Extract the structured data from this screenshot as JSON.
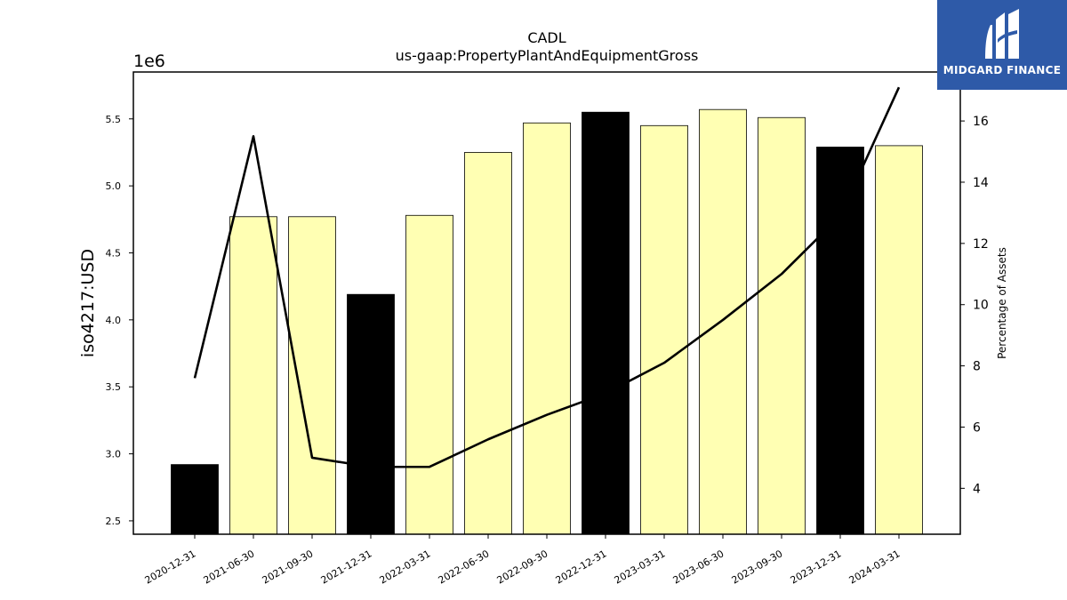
{
  "chart_data": {
    "type": "bar",
    "title": "CADL",
    "subtitle": "us-gaap:PropertyPlantAndEquipmentGross",
    "ylabel": "iso4217:USD",
    "y2label": "Percentage of Assets",
    "y_offset_label": "1e6",
    "categories": [
      "2020-12-31",
      "2021-06-30",
      "2021-09-30",
      "2021-12-31",
      "2022-03-31",
      "2022-06-30",
      "2022-09-30",
      "2022-12-31",
      "2023-03-31",
      "2023-06-30",
      "2023-09-30",
      "2023-12-31",
      "2024-03-31"
    ],
    "series": [
      {
        "type": "bar",
        "values": [
          2.92,
          4.77,
          4.77,
          4.19,
          4.78,
          5.25,
          5.47,
          5.55,
          5.45,
          5.57,
          5.51,
          5.29,
          5.3
        ],
        "colors": [
          "#000000",
          "#ffffb3",
          "#ffffb3",
          "#000000",
          "#ffffb3",
          "#ffffb3",
          "#ffffb3",
          "#000000",
          "#ffffb3",
          "#ffffb3",
          "#ffffb3",
          "#000000",
          "#ffffb3"
        ]
      },
      {
        "type": "line",
        "axis": "right",
        "values": [
          7.6,
          15.5,
          5.0,
          4.7,
          4.7,
          5.6,
          6.4,
          7.1,
          8.1,
          9.5,
          11.0,
          12.9,
          17.1
        ]
      }
    ],
    "ylim": [
      2.4,
      5.85
    ],
    "y2lim": [
      2.5,
      17.6
    ],
    "yticks": [
      2.5,
      3.0,
      3.5,
      4.0,
      4.5,
      5.0,
      5.5
    ],
    "ytick_labels": [
      "2.5",
      "3.0",
      "3.5",
      "4.0",
      "4.5",
      "5.0",
      "5.5"
    ],
    "y2ticks": [
      4,
      6,
      8,
      10,
      12,
      14,
      16
    ],
    "y2tick_labels": [
      "4",
      "6",
      "8",
      "10",
      "12",
      "14",
      "16"
    ],
    "grid": false
  },
  "logo": {
    "text": "MIDGARD FINANCE",
    "color": "#2e5aa8"
  }
}
